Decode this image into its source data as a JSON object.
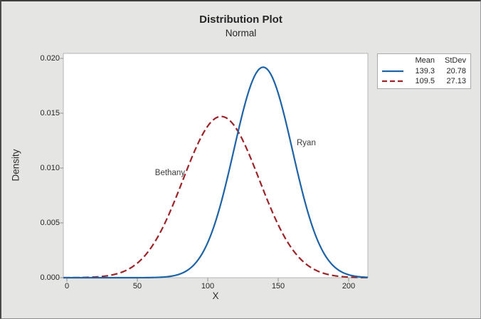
{
  "figure": {
    "background": "#e5e5e4",
    "plot_background": "#ffffff",
    "frame_color": "#b5b5b5",
    "tick_color": "#8f8f8f"
  },
  "chart_data": {
    "type": "line",
    "distribution": "normal",
    "title": "Distribution Plot",
    "subtitle": "Normal",
    "xlabel": "X",
    "ylabel": "Density",
    "xlim": [
      -2.5,
      213.6
    ],
    "ylim": [
      0,
      0.02
    ],
    "grid": false,
    "x_tick_values": [
      0,
      50,
      100,
      150,
      200
    ],
    "x_tick_labels": [
      "0",
      "50",
      "100",
      "150",
      "200"
    ],
    "y_tick_values": [
      0.0,
      0.005,
      0.01,
      0.015,
      0.02
    ],
    "y_tick_labels": [
      "0.000",
      "0.005",
      "0.010",
      "0.015",
      "0.020"
    ],
    "series": [
      {
        "name": "Ryan",
        "mean": 139.3,
        "stdev": 20.78,
        "peak_density": 0.0192,
        "color": "#1e63a5",
        "line_style": "solid"
      },
      {
        "name": "Bethany",
        "mean": 109.5,
        "stdev": 27.13,
        "peak_density": 0.0147,
        "color": "#9c2428",
        "line_style": "dashed"
      }
    ],
    "legend": {
      "position": "top-right",
      "headers": [
        "Mean",
        "StDev"
      ],
      "rows": [
        [
          "139.3",
          "20.78"
        ],
        [
          "109.5",
          "27.13"
        ]
      ]
    }
  }
}
